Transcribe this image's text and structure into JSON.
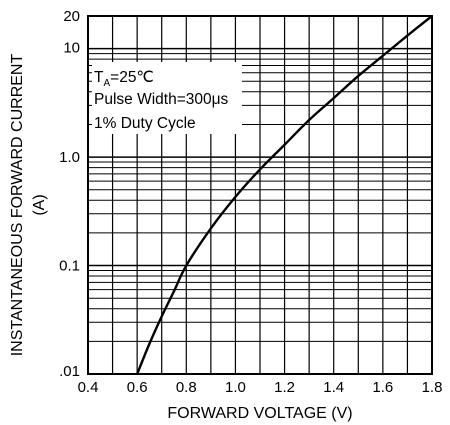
{
  "chart_data": {
    "type": "line",
    "title": "",
    "xlabel": "FORWARD VOLTAGE (V)",
    "ylabel": "INSTANTANEOUS FORWARD CURRENT",
    "ylabel_unit": "(A)",
    "xlim": [
      0.4,
      1.8
    ],
    "ylim": [
      0.01,
      20
    ],
    "yscale": "log",
    "grid": true,
    "x_ticks": [
      "0.4",
      "0.6",
      "0.8",
      "1.0",
      "1.2",
      "1.4",
      "1.6",
      "1.8"
    ],
    "y_ticks": [
      {
        "value": 0.01,
        "label": ".01"
      },
      {
        "value": 0.1,
        "label": "0.1"
      },
      {
        "value": 1,
        "label": "1.0"
      },
      {
        "value": 10,
        "label": "10"
      },
      {
        "value": 20,
        "label": "20"
      }
    ],
    "annotations": {
      "ta_main": "T",
      "ta_sub": "A",
      "ta_rest": "=25℃",
      "pulse": "Pulse Width=300μs",
      "duty": "1% Duty Cycle"
    },
    "series": [
      {
        "x": [
          0.6,
          0.65,
          0.7,
          0.75,
          0.8,
          0.9,
          1.0,
          1.1,
          1.2,
          1.3,
          1.4,
          1.5,
          1.6,
          1.7,
          1.8
        ],
        "y": [
          0.01,
          0.019,
          0.034,
          0.058,
          0.1,
          0.22,
          0.43,
          0.77,
          1.3,
          2.2,
          3.5,
          5.6,
          8.6,
          13.2,
          20
        ]
      }
    ]
  }
}
